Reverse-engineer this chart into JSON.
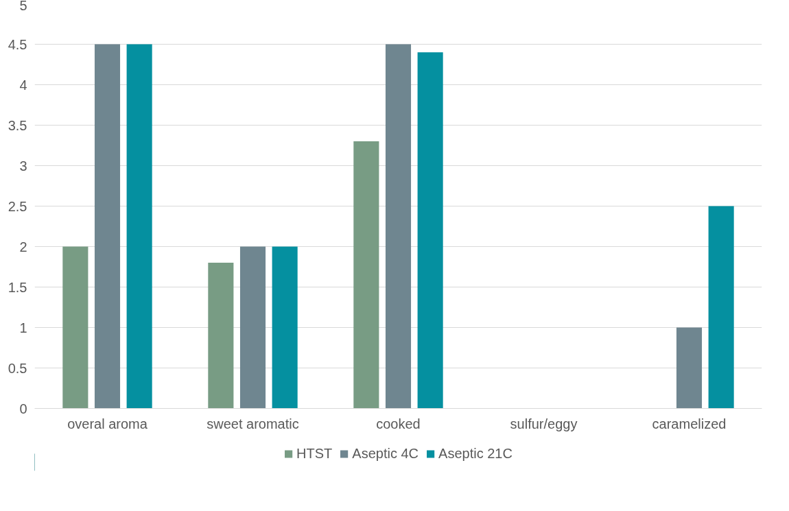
{
  "chart_data": {
    "type": "bar",
    "categories": [
      "overal aroma",
      "sweet aromatic",
      "cooked",
      "sulfur/eggy",
      "caramelized"
    ],
    "series": [
      {
        "name": "HTST",
        "color": "#789c84",
        "values": [
          2,
          1.8,
          3.3,
          0,
          0
        ]
      },
      {
        "name": "Aseptic 4C",
        "color": "#6f8690",
        "values": [
          4.5,
          2,
          4.5,
          0,
          1
        ]
      },
      {
        "name": "Aseptic 21C",
        "color": "#0590a0",
        "values": [
          4.5,
          2,
          4.4,
          0,
          2.5
        ]
      }
    ],
    "ylim": [
      0,
      5
    ],
    "yticks": [
      0,
      {
        "value": 0.5,
        "label": "0.5"
      },
      1,
      {
        "value": 1.5,
        "label": "1.5"
      },
      2,
      {
        "value": 2.5,
        "label": "2.5"
      },
      3,
      {
        "value": 3.5,
        "label": "3.5"
      },
      4,
      {
        "value": 4.5,
        "label": "4.5"
      },
      5
    ],
    "grid": "y",
    "legend": "bottom"
  }
}
